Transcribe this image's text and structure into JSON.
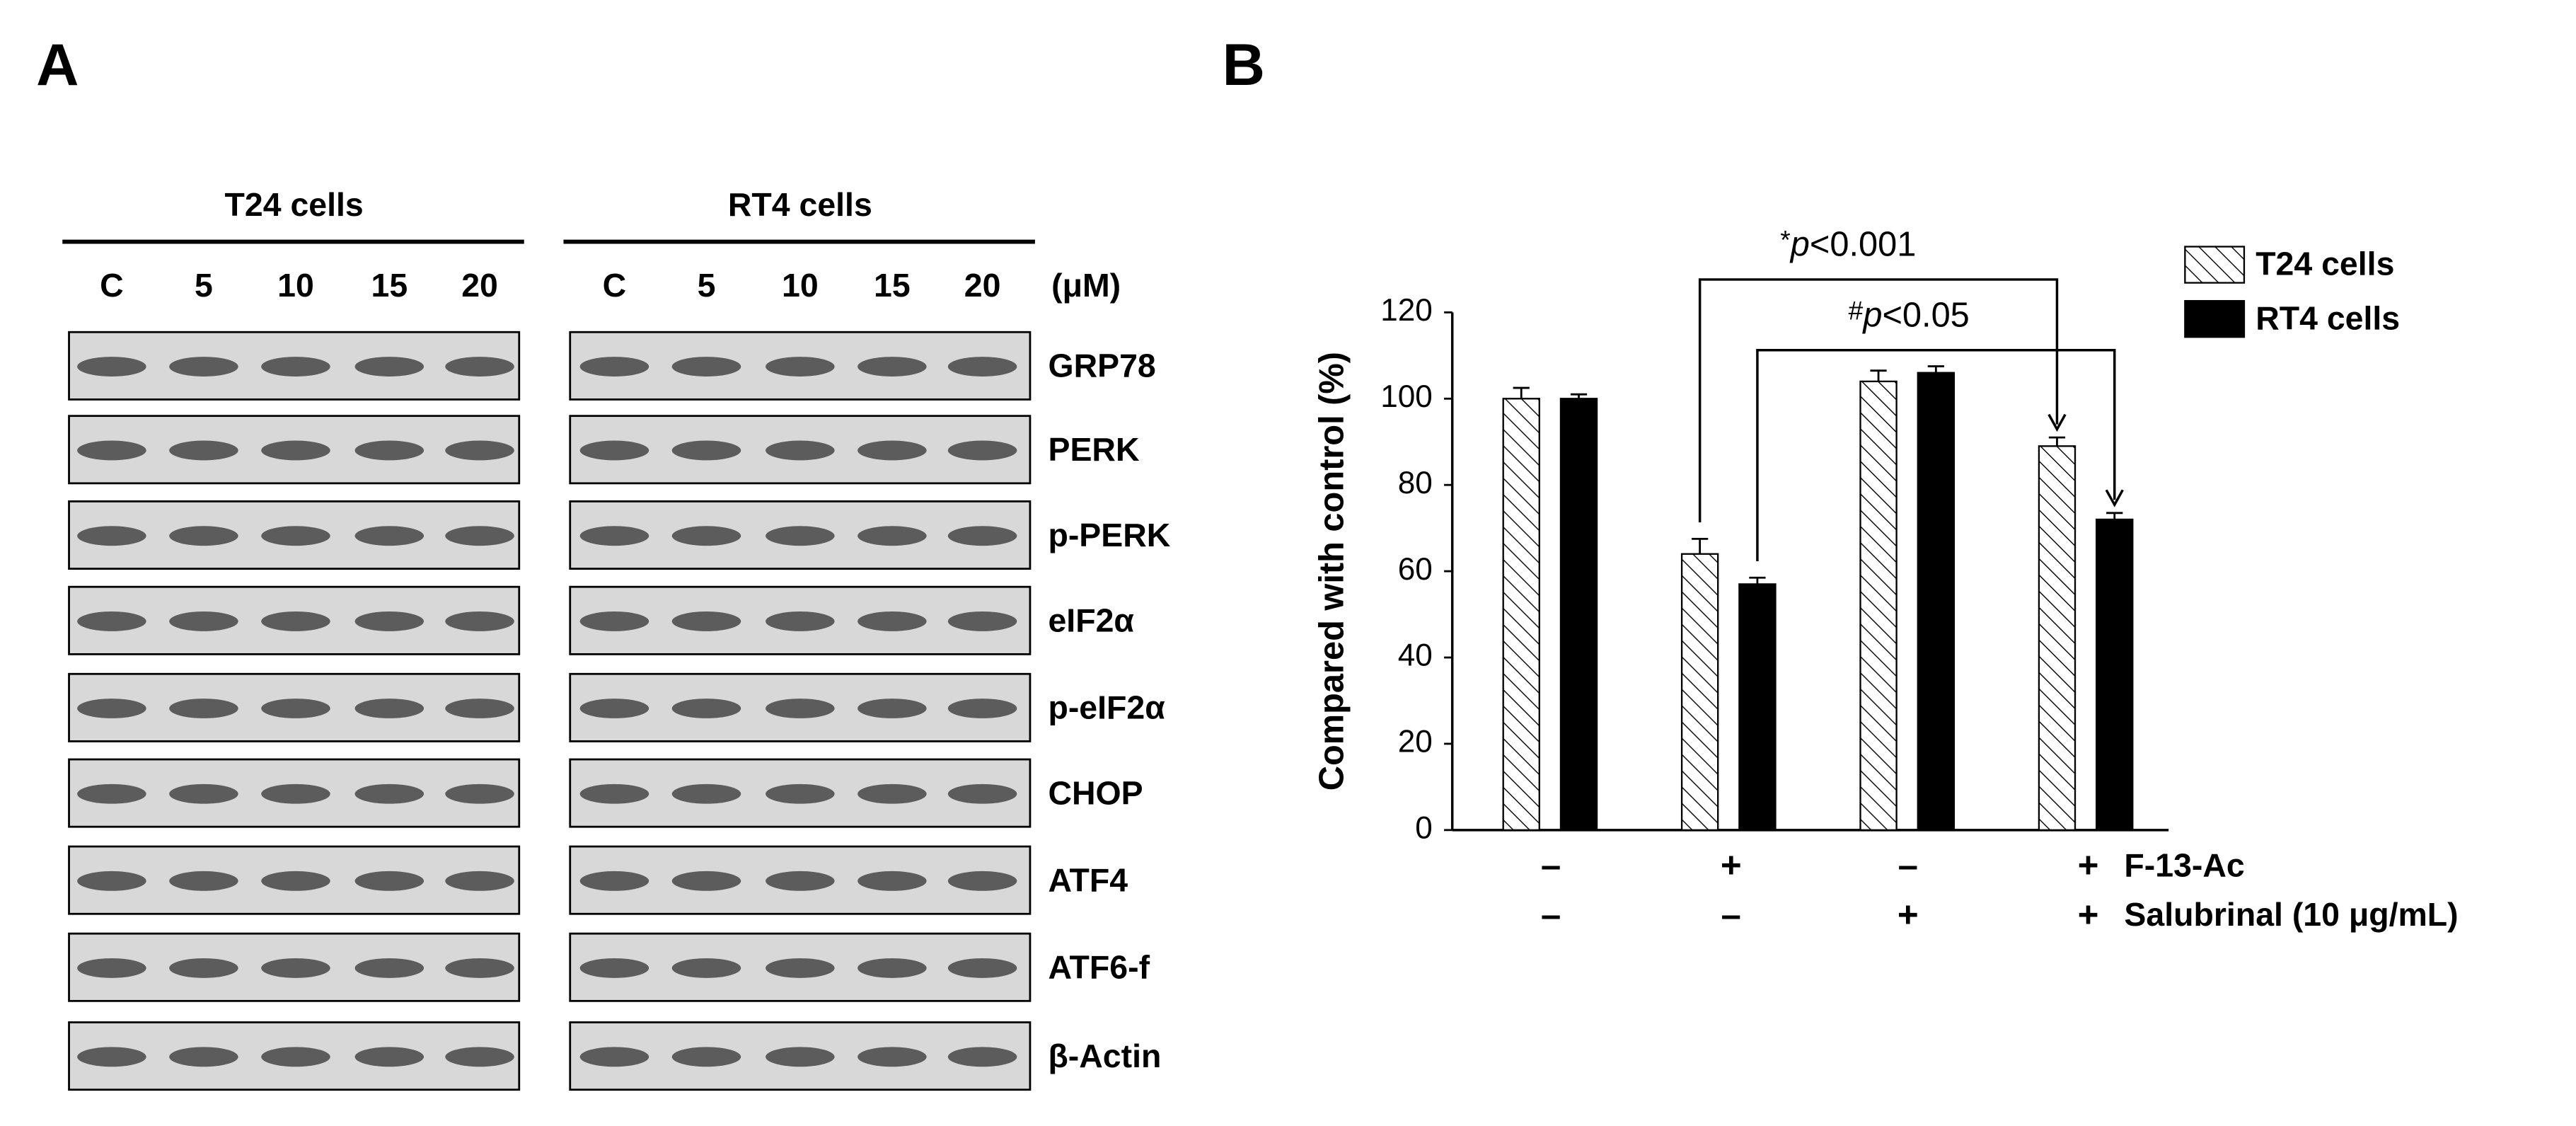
{
  "panel_labels": [
    "A",
    "B"
  ],
  "blots": {
    "groups": [
      {
        "title": "T24 cells",
        "lanes": [
          "C",
          "5",
          "10",
          "15",
          "20"
        ]
      },
      {
        "title": "RT4 cells",
        "lanes": [
          "C",
          "5",
          "10",
          "15",
          "20"
        ]
      }
    ],
    "unit": "(μM)",
    "proteins": [
      "GRP78",
      "PERK",
      "p-PERK",
      "eIF2α",
      "p-eIF2α",
      "CHOP",
      "ATF4",
      "ATF6-f",
      "β-Actin"
    ]
  },
  "chart_data": {
    "type": "bar",
    "ylabel": "Compared with control (%)",
    "categories": [
      null,
      null,
      null,
      null
    ],
    "conditions": [
      {
        "name": "F-13-Ac",
        "values": [
          "–",
          "+",
          "–",
          "+"
        ]
      },
      {
        "name": "Salubrinal (10 μg/mL)",
        "values": [
          "–",
          "–",
          "+",
          "+"
        ]
      }
    ],
    "series": [
      {
        "name": "T24 cells",
        "color": "#000000",
        "pattern": "hatch",
        "values": [
          100,
          64,
          104,
          89
        ],
        "errors": [
          2.5,
          3.5,
          2.5,
          2
        ]
      },
      {
        "name": "RT4 cells",
        "color": "#000000",
        "pattern": "solid",
        "values": [
          100,
          57,
          106,
          72
        ],
        "errors": [
          1,
          1.5,
          1.5,
          1.5
        ]
      }
    ],
    "annotations": [
      {
        "prefix": "*",
        "italic": "p",
        "suffix": "<0.001"
      },
      {
        "prefix": "#",
        "italic": "p",
        "suffix": "<0.05"
      }
    ],
    "ylim": [
      0,
      120
    ],
    "yticks": [
      0,
      20,
      40,
      60,
      80,
      100,
      120
    ],
    "legend": "upper right",
    "grid": false
  }
}
